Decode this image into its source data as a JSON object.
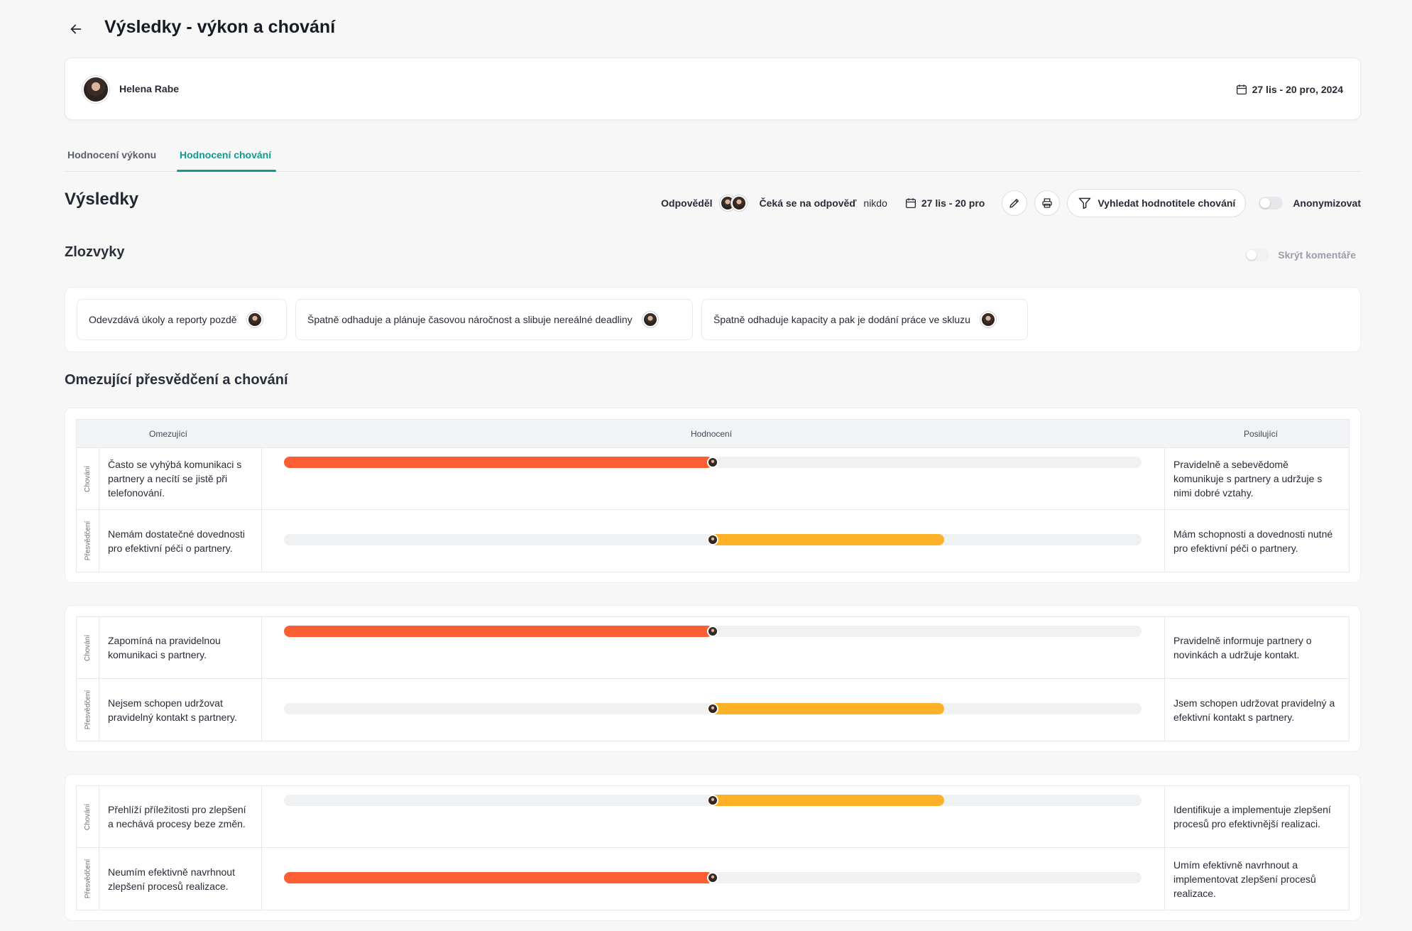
{
  "header": {
    "title": "Výsledky - výkon a chování"
  },
  "person": {
    "name": "Helena Rabe",
    "period": "27 lis - 20 pro, 2024"
  },
  "tabs": [
    {
      "label": "Hodnocení výkonu"
    },
    {
      "label": "Hodnocení chování"
    }
  ],
  "results": {
    "title": "Výsledky",
    "answered_label": "Odpověděl",
    "waiting_label": "Čeká se na odpověď",
    "waiting_value": "nikdo",
    "period": "27 lis - 20 pro",
    "filter_label": "Vyhledat hodnotitele chování",
    "anonymize_label": "Anonymizovat"
  },
  "habits": {
    "title": "Zlozvyky",
    "hide_comments_label": "Skrýt komentáře",
    "items": [
      "Odevzdává úkoly a reporty pozdě",
      "Špatně odhaduje a plánuje časovou náročnost a slibuje nereálné deadliny",
      "Špatně odhaduje kapacity a pak je dodání práce ve skluzu"
    ]
  },
  "beliefs": {
    "title": "Omezující přesvědčení a chování",
    "columns": {
      "limiting": "Omezující",
      "rating": "Hodnocení",
      "supporting": "Posilující"
    },
    "groups": [
      {
        "rows": [
          {
            "type": "Chování",
            "left": "Často se vyhýbá komunikaci s partnery a necítí se jistě při telefonování.",
            "right": "Pravidelně a sebevědomě komunikuje s partnery a udržuje s nimi dobré vztahy.",
            "value": 0.5,
            "direction": "limiting",
            "color": "#fc5e33"
          },
          {
            "type": "Přesvědčení",
            "left": "Nemám dostatečné dovednosti pro efektivní péči o partnery.",
            "right": "Mám schopnosti a dovednosti nutné pro efektivní péči o partnery.",
            "value": 0.77,
            "direction": "supporting",
            "color": "#fcb126"
          }
        ]
      },
      {
        "rows": [
          {
            "type": "Chování",
            "left": "Zapomíná na pravidelnou komunikaci s partnery.",
            "right": "Pravidelně informuje partnery o novinkách a udržuje kontakt.",
            "value": 0.5,
            "direction": "limiting",
            "color": "#fc5e33"
          },
          {
            "type": "Přesvědčení",
            "left": "Nejsem schopen udržovat pravidelný kontakt s partnery.",
            "right": "Jsem schopen udržovat pravidelný a efektivní kontakt s partnery.",
            "value": 0.77,
            "direction": "supporting",
            "color": "#fcb126"
          }
        ]
      },
      {
        "rows": [
          {
            "type": "Chování",
            "left": "Přehlíží příležitosti pro zlepšení a nechává procesy beze změn.",
            "right": "Identifikuje a implementuje zlepšení procesů pro efektivnější realizaci.",
            "value": 0.77,
            "direction": "supporting",
            "color": "#fcb126"
          },
          {
            "type": "Přesvědčení",
            "left": "Neumím efektivně navrhnout zlepšení procesů realizace.",
            "right": "Umím efektivně navrhnout a implementovat zlepšení procesů realizace.",
            "value": 0.5,
            "direction": "limiting",
            "color": "#fc5e33"
          }
        ]
      }
    ]
  },
  "icons": {
    "back": "arrow-left-icon",
    "calendar": "calendar-icon",
    "edit": "pencil-icon",
    "print": "printer-icon",
    "filter": "funnel-icon"
  }
}
